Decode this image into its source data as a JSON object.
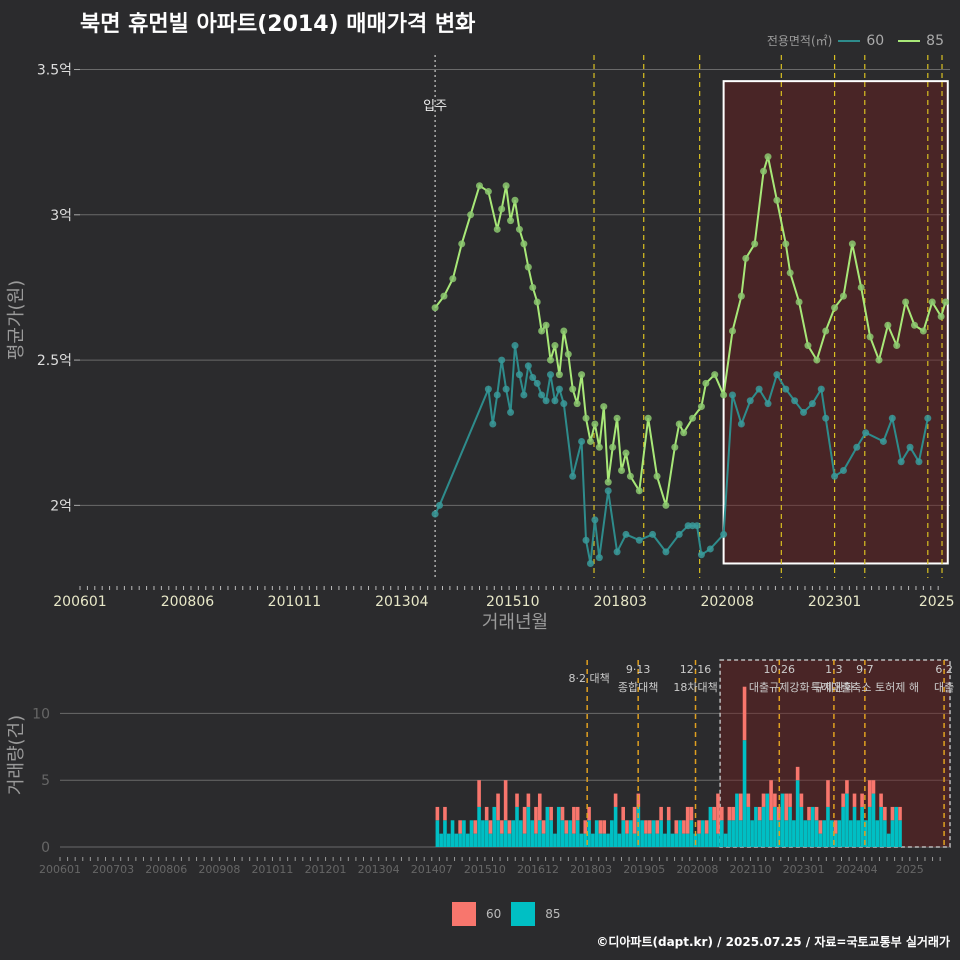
{
  "title": "북면 휴먼빌 아파트(2014) 매매가격 변화",
  "credit": "©디아파트(dapt.kr) / 2025.07.25 / 자료=국토교통부 실거래가",
  "legend_title": "전용면적(㎡)",
  "colors": {
    "s60_line": "#2e8c8c",
    "s60_point": "#3a9a9a",
    "s85_line": "#a8e878",
    "s85_point": "#8cc870",
    "bar60": "#f8766d",
    "bar85": "#00bfc4",
    "vline": "#d9c021",
    "highlight": "rgba(110,30,30,0.45)"
  },
  "chart_data": [
    {
      "type": "line",
      "xlabel": "거래년월",
      "ylabel": "평균가(원)",
      "ylim": [
        1.75,
        3.55
      ],
      "xlim": [
        2006.0,
        2025.6
      ],
      "x_ticks": [
        "200601",
        "200806",
        "201011",
        "201304",
        "201510",
        "201803",
        "202008",
        "202301",
        "2025"
      ],
      "y_ticks": [
        {
          "v": 2.0,
          "label": "2억"
        },
        {
          "v": 2.5,
          "label": "2.5억"
        },
        {
          "v": 3.0,
          "label": "3억"
        },
        {
          "v": 3.5,
          "label": "3.5억"
        }
      ],
      "annotation": {
        "label": "입주",
        "x": 2014.0
      },
      "policy_lines_x": [
        2017.58,
        2018.7,
        2019.96,
        2021.8,
        2023.0,
        2023.68,
        2025.1,
        2025.42
      ],
      "highlight": {
        "x0": 2020.5,
        "x1": 2025.55,
        "y0": 1.8,
        "y1": 3.46
      },
      "series": [
        {
          "name": "60",
          "x": [
            2014.0,
            2014.1,
            2015.2,
            2015.3,
            2015.4,
            2015.5,
            2015.6,
            2015.7,
            2015.8,
            2015.9,
            2016.0,
            2016.1,
            2016.2,
            2016.3,
            2016.4,
            2016.5,
            2016.6,
            2016.7,
            2016.8,
            2016.9,
            2017.1,
            2017.3,
            2017.4,
            2017.5,
            2017.6,
            2017.7,
            2017.9,
            2018.1,
            2018.3,
            2018.6,
            2018.9,
            2019.2,
            2019.5,
            2019.7,
            2019.8,
            2019.9,
            2020.0,
            2020.2,
            2020.5,
            2020.7,
            2020.9,
            2021.1,
            2021.3,
            2021.5,
            2021.7,
            2021.9,
            2022.1,
            2022.3,
            2022.5,
            2022.7,
            2022.8,
            2023.0,
            2023.2,
            2023.5,
            2023.7,
            2024.1,
            2024.3,
            2024.5,
            2024.7,
            2024.9,
            2025.1
          ],
          "y": [
            1.97,
            2.0,
            2.4,
            2.28,
            2.38,
            2.5,
            2.4,
            2.32,
            2.55,
            2.45,
            2.38,
            2.48,
            2.44,
            2.42,
            2.38,
            2.36,
            2.45,
            2.36,
            2.4,
            2.35,
            2.1,
            2.22,
            1.88,
            1.8,
            1.95,
            1.82,
            2.05,
            1.84,
            1.9,
            1.88,
            1.9,
            1.84,
            1.9,
            1.93,
            1.93,
            1.93,
            1.83,
            1.85,
            1.9,
            2.38,
            2.28,
            2.36,
            2.4,
            2.35,
            2.45,
            2.4,
            2.36,
            2.32,
            2.35,
            2.4,
            2.3,
            2.1,
            2.12,
            2.2,
            2.25,
            2.22,
            2.3,
            2.15,
            2.2,
            2.15,
            2.3
          ]
        },
        {
          "name": "85",
          "x": [
            2014.0,
            2014.2,
            2014.4,
            2014.6,
            2014.8,
            2015.0,
            2015.2,
            2015.4,
            2015.5,
            2015.6,
            2015.7,
            2015.8,
            2015.9,
            2016.0,
            2016.1,
            2016.2,
            2016.3,
            2016.4,
            2016.5,
            2016.6,
            2016.7,
            2016.8,
            2016.9,
            2017.0,
            2017.1,
            2017.2,
            2017.3,
            2017.4,
            2017.5,
            2017.6,
            2017.7,
            2017.8,
            2017.9,
            2018.0,
            2018.1,
            2018.2,
            2018.3,
            2018.4,
            2018.6,
            2018.8,
            2019.0,
            2019.2,
            2019.4,
            2019.5,
            2019.6,
            2019.8,
            2020.0,
            2020.1,
            2020.3,
            2020.5,
            2020.7,
            2020.9,
            2021.0,
            2021.2,
            2021.4,
            2021.5,
            2021.7,
            2021.9,
            2022.0,
            2022.2,
            2022.4,
            2022.6,
            2022.8,
            2023.0,
            2023.2,
            2023.4,
            2023.6,
            2023.8,
            2024.0,
            2024.2,
            2024.4,
            2024.6,
            2024.8,
            2025.0,
            2025.2,
            2025.4,
            2025.5
          ],
          "y": [
            2.68,
            2.72,
            2.78,
            2.9,
            3.0,
            3.1,
            3.08,
            2.95,
            3.02,
            3.1,
            2.98,
            3.05,
            2.95,
            2.9,
            2.82,
            2.75,
            2.7,
            2.6,
            2.62,
            2.5,
            2.55,
            2.45,
            2.6,
            2.52,
            2.4,
            2.35,
            2.45,
            2.3,
            2.22,
            2.28,
            2.2,
            2.34,
            2.08,
            2.2,
            2.3,
            2.12,
            2.18,
            2.1,
            2.05,
            2.3,
            2.1,
            2.0,
            2.2,
            2.28,
            2.25,
            2.3,
            2.34,
            2.42,
            2.45,
            2.38,
            2.6,
            2.72,
            2.85,
            2.9,
            3.15,
            3.2,
            3.05,
            2.9,
            2.8,
            2.7,
            2.55,
            2.5,
            2.6,
            2.68,
            2.72,
            2.9,
            2.75,
            2.58,
            2.5,
            2.62,
            2.55,
            2.7,
            2.62,
            2.6,
            2.7,
            2.65,
            2.7
          ]
        }
      ]
    },
    {
      "type": "bar",
      "ylabel": "거래량(건)",
      "ylim": [
        0,
        14
      ],
      "y_ticks": [
        0,
        5,
        10
      ],
      "x_ticks": [
        "200601",
        "200703",
        "200806",
        "200908",
        "201011",
        "201201",
        "201304",
        "201407",
        "201510",
        "201612",
        "201803",
        "201905",
        "202008",
        "202110",
        "202301",
        "202404",
        "2025"
      ],
      "policy_labels": [
        {
          "line1": "8·2",
          "line2": "대책",
          "x": 2017.58,
          "inline": true
        },
        {
          "line1": "9·13",
          "line2": "종합대책",
          "x": 2018.7
        },
        {
          "line1": "12·16",
          "line2": "18차대책",
          "x": 2019.96
        },
        {
          "line1": "10·26",
          "line2": "대출규제강화",
          "x": 2021.8
        },
        {
          "line1": "1·3",
          "line2": "규제완화",
          "x": 2023.0
        },
        {
          "line1": "9·7",
          "line2": "특례대출축소 토허제 해",
          "x": 2023.68
        },
        {
          "line1": "6·2",
          "line2": "대출",
          "x": 2025.42
        }
      ],
      "highlight": {
        "x0": 2020.5,
        "x1": 2025.55,
        "y1": 14
      },
      "series": [
        {
          "name": "60"
        },
        {
          "name": "85"
        }
      ],
      "x_start": 2014.25,
      "x_step": 0.0833,
      "values60": [
        1,
        0,
        1,
        0,
        0,
        0,
        1,
        0,
        0,
        0,
        1,
        2,
        0,
        1,
        1,
        0,
        2,
        1,
        3,
        1,
        0,
        1,
        0,
        2,
        1,
        0,
        2,
        2,
        1,
        0,
        1,
        0,
        0,
        1,
        1,
        0,
        2,
        1,
        0,
        1,
        1,
        0,
        0,
        1,
        1,
        0,
        0,
        1,
        0,
        1,
        1,
        0,
        2,
        1,
        0,
        1,
        1,
        0,
        1,
        1,
        0,
        1,
        0,
        1,
        0,
        1,
        2,
        1,
        0,
        1,
        0,
        1,
        0,
        1,
        3,
        1,
        0,
        1,
        1,
        0,
        2,
        4,
        1,
        0,
        0,
        1,
        1,
        0,
        3,
        1,
        1,
        0,
        2,
        1,
        0,
        1,
        1,
        0,
        1,
        0,
        1,
        1,
        0,
        2,
        0,
        1,
        0,
        1,
        1,
        0,
        1,
        0,
        1,
        0,
        2,
        1,
        0,
        1,
        1,
        0,
        1,
        0,
        1
      ],
      "values85": [
        2,
        1,
        2,
        1,
        2,
        1,
        1,
        2,
        1,
        2,
        1,
        3,
        2,
        2,
        1,
        3,
        2,
        1,
        2,
        1,
        2,
        3,
        2,
        1,
        3,
        2,
        1,
        2,
        1,
        3,
        2,
        1,
        3,
        2,
        1,
        2,
        1,
        2,
        1,
        1,
        2,
        1,
        2,
        1,
        1,
        1,
        2,
        3,
        1,
        2,
        1,
        2,
        1,
        3,
        2,
        1,
        1,
        2,
        1,
        2,
        1,
        2,
        1,
        1,
        2,
        1,
        1,
        2,
        1,
        1,
        2,
        1,
        3,
        2,
        1,
        2,
        1,
        2,
        2,
        4,
        2,
        8,
        3,
        2,
        3,
        2,
        3,
        4,
        2,
        3,
        2,
        4,
        2,
        3,
        2,
        5,
        3,
        2,
        2,
        3,
        2,
        1,
        2,
        3,
        2,
        1,
        2,
        3,
        4,
        2,
        3,
        2,
        3,
        2,
        3,
        4,
        2,
        3,
        2,
        1,
        2,
        3,
        2
      ]
    }
  ]
}
